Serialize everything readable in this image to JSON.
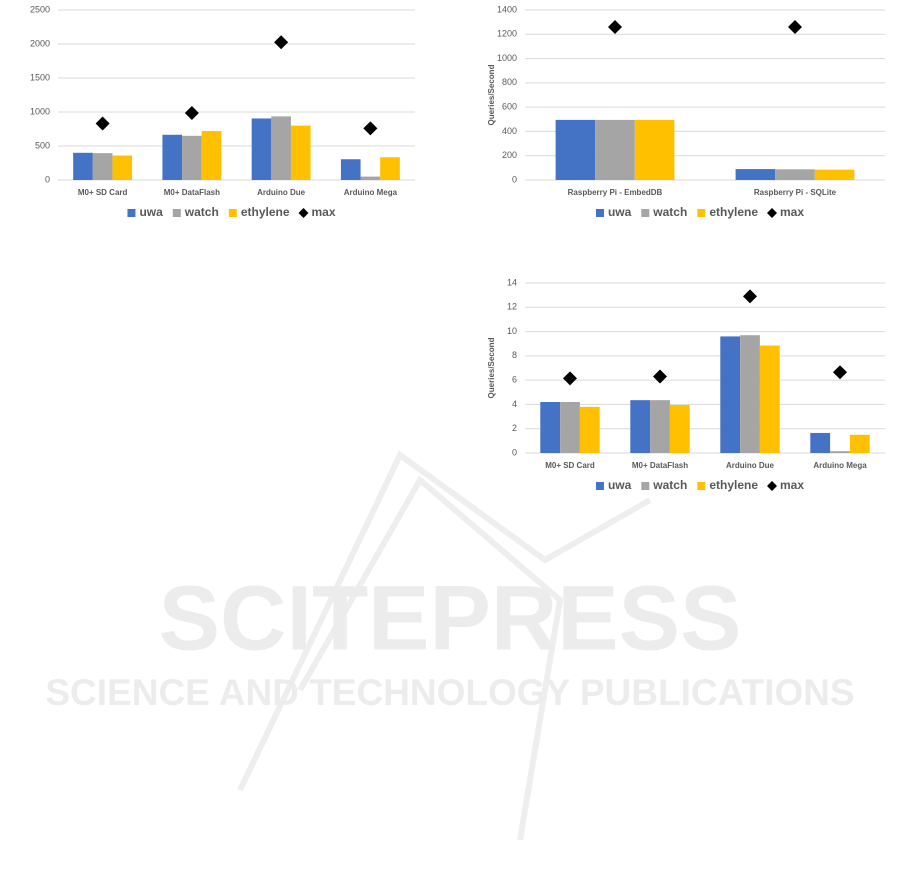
{
  "chart_data": [
    {
      "type": "bar",
      "categories": [
        "M0+ SD Card",
        "M0+ DataFlash",
        "Arduino Due",
        "Arduino Mega"
      ],
      "series": [
        {
          "name": "uwa",
          "color": "#4472c4",
          "values": [
            400,
            665,
            905,
            305
          ]
        },
        {
          "name": "watch",
          "color": "#a5a5a5",
          "values": [
            395,
            650,
            935,
            50
          ]
        },
        {
          "name": "ethylene",
          "color": "#ffc000",
          "values": [
            360,
            720,
            800,
            335
          ]
        },
        {
          "name": "max",
          "type": "scatter",
          "color": "#000000",
          "values": [
            830,
            985,
            2025,
            760
          ]
        }
      ],
      "ylim": [
        0,
        2500
      ],
      "yticks": [
        0,
        500,
        1000,
        1500,
        2000,
        2500
      ],
      "grid": true,
      "legend": "bottom"
    },
    {
      "type": "bar",
      "y_label": "Queries/Second",
      "categories": [
        "Raspberry Pi - EmbedDB",
        "Raspberry Pi - SQLite"
      ],
      "series": [
        {
          "name": "uwa",
          "color": "#4472c4",
          "values": [
            495,
            90
          ]
        },
        {
          "name": "watch",
          "color": "#a5a5a5",
          "values": [
            495,
            88
          ]
        },
        {
          "name": "ethylene",
          "color": "#ffc000",
          "values": [
            495,
            85
          ]
        },
        {
          "name": "max",
          "type": "scatter",
          "color": "#000000",
          "values": [
            1260,
            1260
          ]
        }
      ],
      "ylim": [
        0,
        1400
      ],
      "yticks": [
        0,
        200,
        400,
        600,
        800,
        1000,
        1200,
        1400
      ],
      "grid": true,
      "legend": "bottom"
    },
    {
      "type": "bar",
      "y_label": "Queries/Second",
      "categories": [
        "M0+ SD Card",
        "M0+ DataFlash",
        "Arduino Due",
        "Arduino Mega"
      ],
      "series": [
        {
          "name": "uwa",
          "color": "#4472c4",
          "values": [
            4.2,
            4.35,
            9.6,
            1.65
          ]
        },
        {
          "name": "watch",
          "color": "#a5a5a5",
          "values": [
            4.2,
            4.35,
            9.7,
            0.15
          ]
        },
        {
          "name": "ethylene",
          "color": "#ffc000",
          "values": [
            3.8,
            3.95,
            8.85,
            1.5
          ]
        },
        {
          "name": "max",
          "type": "scatter",
          "color": "#000000",
          "values": [
            6.15,
            6.3,
            12.9,
            6.65
          ]
        }
      ],
      "ylim": [
        0,
        14
      ],
      "yticks": [
        0,
        2,
        4,
        6,
        8,
        10,
        12,
        14
      ],
      "grid": true,
      "legend": "bottom"
    }
  ],
  "watermark": {
    "title": "SCITEPRESS",
    "subtitle": "SCIENCE AND TECHNOLOGY PUBLICATIONS"
  }
}
